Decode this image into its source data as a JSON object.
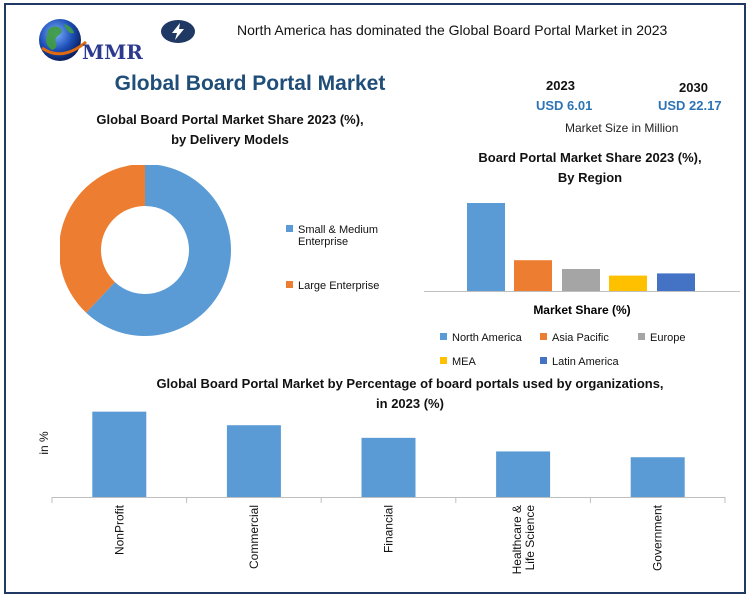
{
  "header": {
    "logo_text": "MMR",
    "headline": "North America has dominated the Global Board Portal Market in 2023",
    "bolt_icon": "lightning-bolt-icon",
    "main_title": "Global Board Portal Market"
  },
  "market_size": {
    "year_2023": "2023",
    "value_2023": "USD 6.01",
    "year_2030": "2030",
    "value_2030": "USD 22.17",
    "caption": "Market Size in Million"
  },
  "colors": {
    "blue": "#5b9bd5",
    "orange": "#ed7d31",
    "gray": "#a5a5a5",
    "yellow": "#ffc000",
    "dark_blue": "#4472c4",
    "title_blue": "#1f4e79",
    "frame": "#1f3864"
  },
  "chart_data": [
    {
      "type": "pie",
      "title_line1": "Global Board Portal Market Share 2023 (%),",
      "title_line2": "by Delivery Models",
      "categories": [
        "Small & Medium Enterprise",
        "Large Enterprise"
      ],
      "legend_lines": [
        [
          "Small & Medium",
          "Enterprise"
        ],
        [
          "Large Enterprise"
        ]
      ],
      "values": [
        62,
        38
      ],
      "legend_placement": "right"
    },
    {
      "type": "bar",
      "title_line1": "Board Portal Market Share 2023 (%),",
      "title_line2": "By Region",
      "xlabel": "Market Share (%)",
      "categories": [
        "North America",
        "Asia Pacific",
        "Europe",
        "MEA",
        "Latin America"
      ],
      "values": [
        40,
        14,
        10,
        7,
        8
      ],
      "ylim": [
        0,
        45
      ],
      "legend_placement": "bottom"
    },
    {
      "type": "bar",
      "title_line1": "Global Board Portal Market by Percentage of board portals used by organizations,",
      "title_line2": "in 2023 (%)",
      "ylabel": "in %",
      "categories": [
        "NonProfit",
        "Commercial",
        "Financial",
        "Healthcare & Life Science",
        "Government"
      ],
      "category_lines": [
        [
          "NonProfit"
        ],
        [
          "Commercial"
        ],
        [
          "Financial"
        ],
        [
          "Healthcare &",
          "Life Science"
        ],
        [
          "Government"
        ]
      ],
      "values": [
        88,
        74,
        61,
        47,
        41
      ],
      "ylim": [
        0,
        100
      ]
    }
  ]
}
